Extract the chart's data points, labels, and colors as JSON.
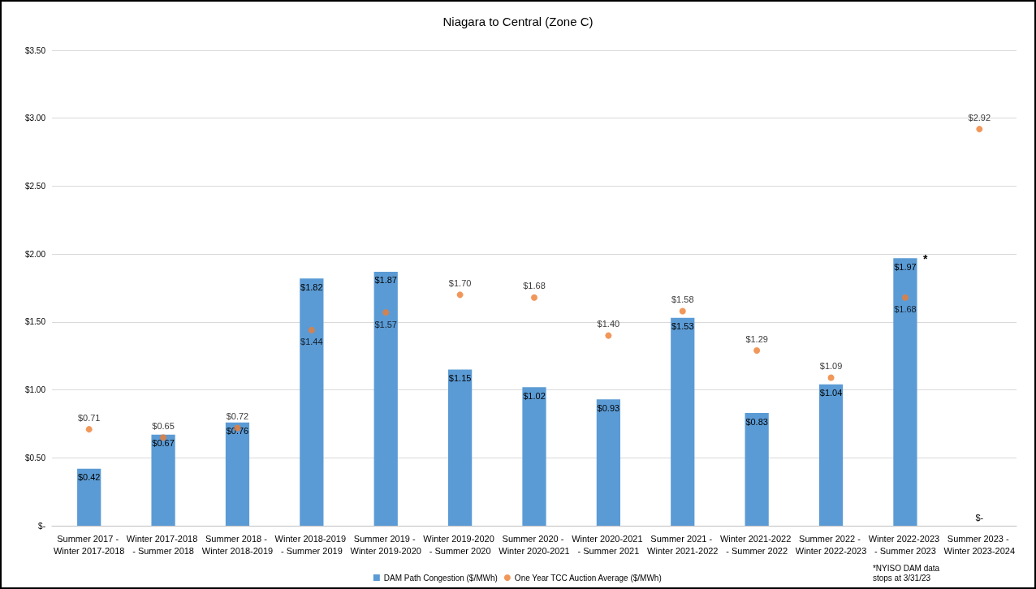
{
  "chart_data": {
    "type": "bar",
    "title": "Niagara to Central (Zone C)",
    "categories": [
      "Summer 2017 - Winter 2017-2018",
      "Winter 2017-2018 - Summer 2018",
      "Summer 2018 - Winter 2018-2019",
      "Winter 2018-2019 - Summer 2019",
      "Summer 2019 - Winter 2019-2020",
      "Winter 2019-2020 - Summer 2020",
      "Summer 2020 - Winter 2020-2021",
      "Winter 2020-2021 - Summer 2021",
      "Summer 2021 - Winter 2021-2022",
      "Winter 2021-2022 - Summer 2022",
      "Summer 2022 - Winter 2022-2023",
      "Winter 2022-2023 - Summer 2023",
      "Summer 2023 - Winter 2023-2024"
    ],
    "series": [
      {
        "name": "DAM Path Congestion ($/MWh)",
        "type": "bar",
        "color": "#5b9bd5",
        "values": [
          0.42,
          0.67,
          0.76,
          1.82,
          1.87,
          1.15,
          1.02,
          0.93,
          1.53,
          0.83,
          1.04,
          1.97,
          0
        ],
        "value_labels": [
          "$0.42",
          "$0.67",
          "$0.76",
          "$1.82",
          "$1.87",
          "$1.15",
          "$1.02",
          "$0.93",
          "$1.53",
          "$0.83",
          "$1.04",
          "$1.97",
          "$-"
        ]
      },
      {
        "name": "One Year TCC Auction Average ($/MWh)",
        "type": "scatter",
        "color": "#ed7d31",
        "marker": "circle",
        "values": [
          0.71,
          0.65,
          0.72,
          1.44,
          1.57,
          1.7,
          1.68,
          1.4,
          1.58,
          1.29,
          1.09,
          1.68,
          2.92
        ],
        "value_labels": [
          "$0.71",
          "$0.65",
          "$0.72",
          "$1.44",
          "$1.57",
          "$1.70",
          "$1.68",
          "$1.40",
          "$1.58",
          "$1.29",
          "$1.09",
          "$1.68",
          "$2.92"
        ]
      }
    ],
    "ylim": [
      0,
      3.5
    ],
    "yticks": [
      {
        "value": 0,
        "label": "$-"
      },
      {
        "value": 0.5,
        "label": "$0.50"
      },
      {
        "value": 1,
        "label": "$1.00"
      },
      {
        "value": 1.5,
        "label": "$1.50"
      },
      {
        "value": 2,
        "label": "$2.00"
      },
      {
        "value": 2.5,
        "label": "$2.50"
      },
      {
        "value": 3,
        "label": "$3.00"
      },
      {
        "value": 3.5,
        "label": "$3.50"
      }
    ],
    "grid": "y",
    "legend": "bottom",
    "annotations": [
      {
        "text": "*",
        "x": "Winter 2022-2023 - Summer 2023",
        "y": 1.97
      },
      "*NYISO DAM data stops at 3/31/23"
    ]
  }
}
